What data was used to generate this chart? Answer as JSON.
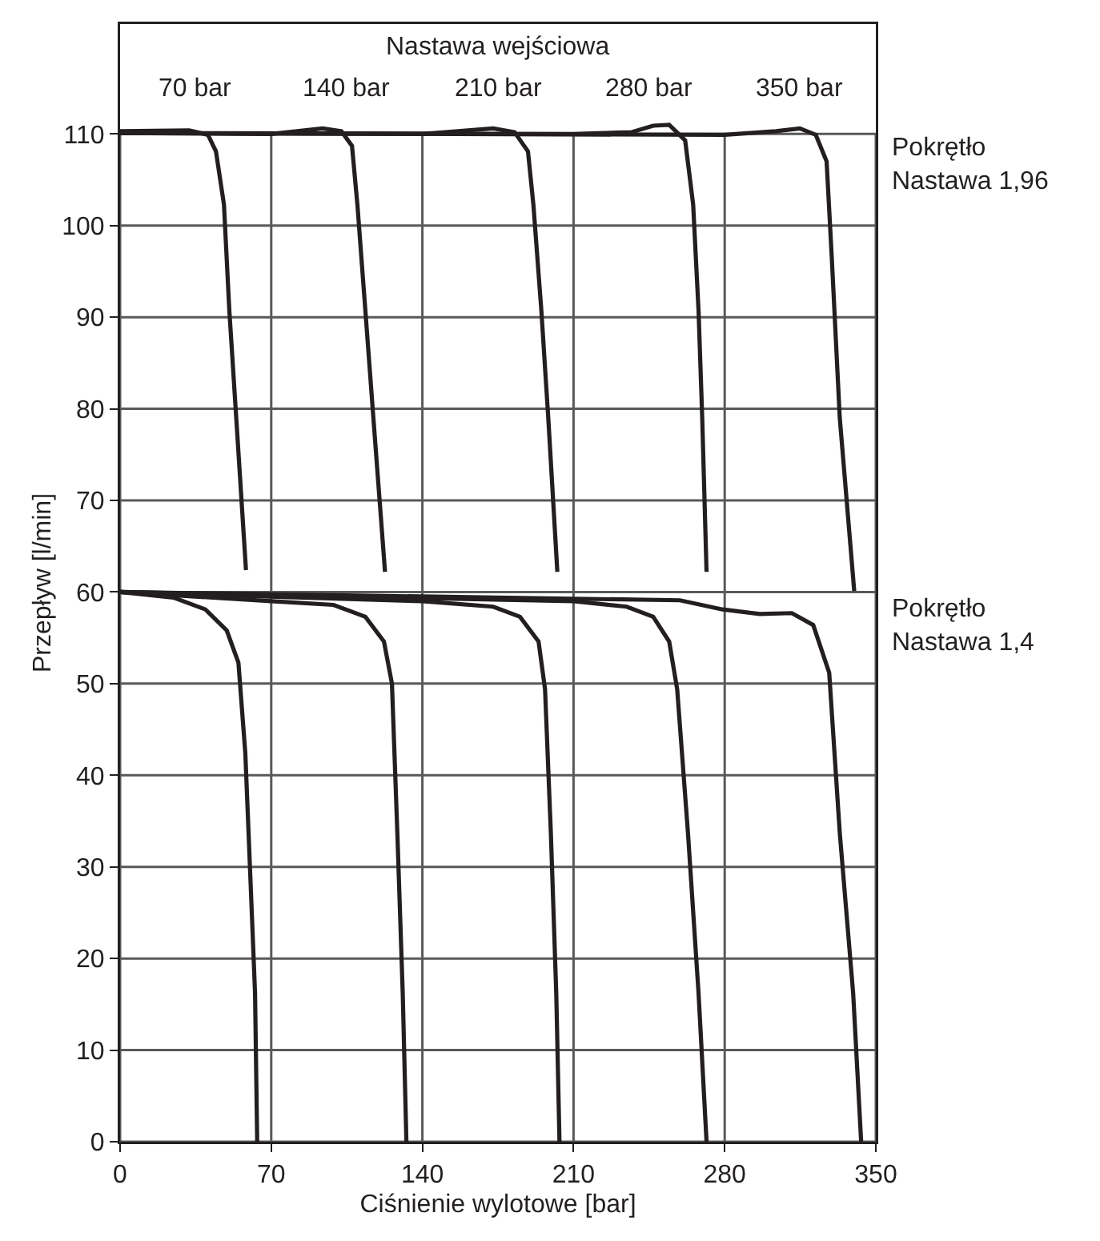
{
  "chart_data": {
    "type": "line",
    "xlabel": "Ciśnienie wylotowe [bar]",
    "ylabel": "Przepływ [l/min]",
    "xlim": [
      0,
      350
    ],
    "xticks": [
      0,
      70,
      140,
      210,
      280,
      350
    ],
    "ylim": [
      0,
      122
    ],
    "yticks": [
      0,
      10,
      20,
      30,
      40,
      50,
      60,
      70,
      80,
      90,
      100,
      110
    ],
    "grid": true,
    "marker": "none",
    "line_style": "solid",
    "annotations": [
      "Nastawa wejściowa",
      "70 bar",
      "140 bar",
      "210 bar",
      "280 bar",
      "350 bar",
      "Pokrętło\nNastawa 1,96",
      "Pokrętło\nNastawa 1,4"
    ],
    "series": [
      {
        "color": "#231f20",
        "x": [
          0,
          32,
          40.7,
          44.4,
          48.1,
          50.6,
          53.8,
          58.3
        ],
        "values": [
          110.3,
          110.4,
          109.9,
          108.1,
          102.3,
          90.7,
          79,
          62.4
        ]
      },
      {
        "color": "#231f20",
        "x": [
          0,
          70,
          93.8,
          102.5,
          107.4,
          109.9,
          113.6,
          117.3,
          122.7
        ],
        "values": [
          110.1,
          110,
          110.6,
          110.3,
          108.7,
          102.3,
          90.7,
          79,
          62.2
        ]
      },
      {
        "color": "#231f20",
        "x": [
          0,
          140,
          172.8,
          182.7,
          188.9,
          191.4,
          195.1,
          198.3,
          202.5
        ],
        "values": [
          110.1,
          110,
          110.6,
          110.2,
          108.1,
          102.3,
          90.7,
          79,
          62.2
        ]
      },
      {
        "color": "#231f20",
        "x": [
          0,
          210,
          237,
          246.9,
          254.3,
          261.7,
          265.4,
          267.9,
          269.6,
          271.6
        ],
        "values": [
          110.1,
          110,
          110.2,
          110.9,
          111,
          109.3,
          102.3,
          90.7,
          79,
          62.2
        ]
      },
      {
        "color": "#231f20",
        "x": [
          0,
          280,
          303.7,
          314.8,
          322.2,
          327.2,
          329.6,
          333.3,
          340
        ],
        "values": [
          110.1,
          109.9,
          110.3,
          110.6,
          109.9,
          107,
          96.5,
          79,
          60.1
        ]
      },
      {
        "color": "#231f20",
        "x": [
          0,
          24.7,
          39.5,
          49.4,
          54.8,
          58,
          60.5,
          62.5,
          63.5
        ],
        "values": [
          60,
          59.4,
          58.1,
          55.8,
          52.3,
          42.4,
          27.9,
          16.2,
          0
        ]
      },
      {
        "color": "#231f20",
        "x": [
          0,
          70.1,
          98.8,
          113.6,
          122.2,
          125.9,
          128.4,
          130.9,
          132.6
        ],
        "values": [
          60,
          59,
          58.6,
          57.3,
          54.6,
          50,
          33.7,
          16.2,
          0
        ]
      },
      {
        "color": "#231f20",
        "x": [
          0,
          140,
          172.8,
          185.2,
          193.8,
          196.8,
          199.5,
          202,
          203.5
        ],
        "values": [
          60,
          59,
          58.4,
          57.3,
          54.6,
          49.4,
          33.7,
          16.2,
          0
        ]
      },
      {
        "color": "#231f20",
        "x": [
          0,
          210.1,
          234.6,
          246.9,
          254.3,
          258,
          263,
          267.9,
          271.6
        ],
        "values": [
          60,
          59,
          58.4,
          57.3,
          54.6,
          49.4,
          33.7,
          16.2,
          0
        ]
      },
      {
        "color": "#231f20",
        "x": [
          0,
          259.3,
          279,
          296.3,
          311.1,
          321,
          328.4,
          333.3,
          339.5,
          343.2
        ],
        "values": [
          60,
          59.1,
          58.1,
          57.6,
          57.7,
          56.4,
          51.2,
          33.7,
          16.2,
          0
        ]
      }
    ]
  }
}
